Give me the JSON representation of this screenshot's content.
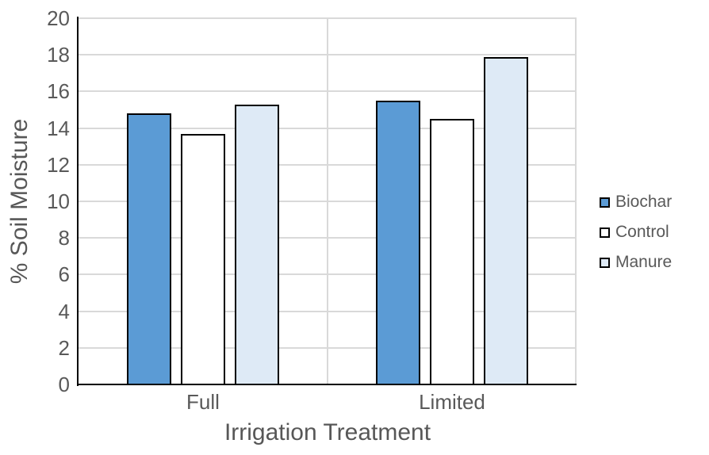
{
  "chart_data": {
    "type": "bar",
    "categories": [
      "Full",
      "Limited"
    ],
    "series": [
      {
        "name": "Biochar",
        "values": [
          14.8,
          15.5
        ],
        "fill": "#5B9BD5",
        "border": "#000000"
      },
      {
        "name": "Control",
        "values": [
          13.7,
          14.5
        ],
        "fill": "#FFFFFF",
        "border": "#000000"
      },
      {
        "name": "Manure",
        "values": [
          15.3,
          17.9
        ],
        "fill": "#DEEAF6",
        "border": "#000000"
      }
    ],
    "title": "",
    "xlabel": "Irrigation Treatment",
    "ylabel": "% Soil Moisture",
    "ylim": [
      0,
      20
    ],
    "ytick_step": 2,
    "yticks": [
      0,
      2,
      4,
      6,
      8,
      10,
      12,
      14,
      16,
      18,
      20
    ],
    "grid": true,
    "legend_position": "right",
    "colors": {
      "gridline": "#D9D9D9",
      "axis": "#000000",
      "text": "#595959"
    }
  }
}
